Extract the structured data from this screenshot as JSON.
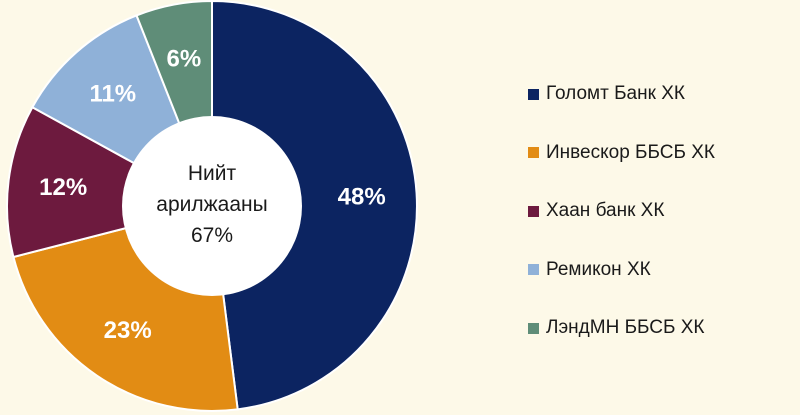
{
  "chart_data": {
    "type": "pie",
    "categories": [
      "Голомт Банк ХК",
      "Инвескор ББСБ ХК",
      "Хаан банк ХК",
      "Ремикон ХК",
      "ЛэндМН ББСБ ХК"
    ],
    "values": [
      48,
      23,
      12,
      11,
      6
    ],
    "value_labels": [
      "48%",
      "23%",
      "12%",
      "11%",
      "6%"
    ],
    "colors": [
      "#0c2461",
      "#e28c14",
      "#6d1a3e",
      "#8fb1d8",
      "#5f8d78"
    ],
    "donut": true,
    "center_label": {
      "line1": "Нийт",
      "line2": "арилжааны",
      "line3": "67%"
    },
    "legend_position": "right"
  }
}
